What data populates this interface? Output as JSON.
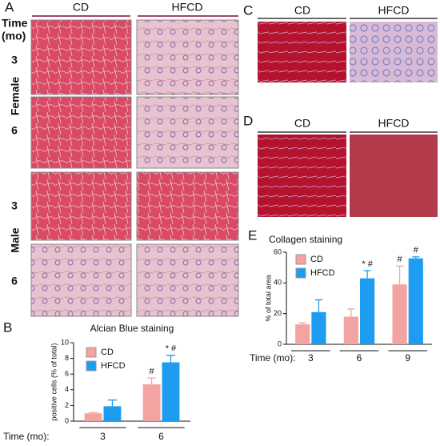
{
  "panel_a": {
    "label": "A",
    "columns": [
      "CD",
      "HFCD"
    ],
    "time_label": [
      "Time",
      "(mo)"
    ],
    "rows": [
      "3",
      "6",
      "3",
      "6"
    ],
    "groups": [
      "Female",
      "Male"
    ]
  },
  "panel_b": {
    "label": "B"
  },
  "panel_c": {
    "label": "C",
    "columns": [
      "CD",
      "HFCD"
    ]
  },
  "panel_d": {
    "label": "D",
    "columns": [
      "CD",
      "HFCD"
    ]
  },
  "panel_e": {
    "label": "E"
  },
  "chart_data": [
    {
      "type": "bar",
      "title": "Alcian Blue staining",
      "y_label": "positive cells (% of total)",
      "x_label": "Time (mo):",
      "categories": [
        "3",
        "6"
      ],
      "ylim": [
        0,
        10
      ],
      "yticks": [
        0,
        2,
        4,
        6,
        8,
        10
      ],
      "series": [
        {
          "name": "CD",
          "color": "#f4a3a3",
          "values": [
            1.0,
            4.7
          ],
          "errors": [
            0.1,
            0.8
          ],
          "labels": [
            null,
            "#"
          ]
        },
        {
          "name": "HFCD",
          "color": "#1e9cf0",
          "values": [
            1.9,
            7.5
          ],
          "errors": [
            0.8,
            0.9
          ],
          "labels": [
            null,
            "* #"
          ]
        }
      ]
    },
    {
      "type": "bar",
      "title": "Collagen staining",
      "y_label": "% of total area",
      "x_label": "Time (mo):",
      "categories": [
        "3",
        "6",
        "9"
      ],
      "ylim": [
        0,
        60
      ],
      "yticks": [
        0,
        20,
        40,
        60
      ],
      "series": [
        {
          "name": "CD",
          "color": "#f4a3a3",
          "values": [
            13,
            18,
            39
          ],
          "errors": [
            1,
            5,
            12
          ],
          "labels": [
            null,
            null,
            "#"
          ]
        },
        {
          "name": "HFCD",
          "color": "#1e9cf0",
          "values": [
            21,
            43,
            56
          ],
          "errors": [
            8,
            5,
            1
          ],
          "labels": [
            null,
            "* #",
            "#"
          ]
        }
      ]
    }
  ]
}
